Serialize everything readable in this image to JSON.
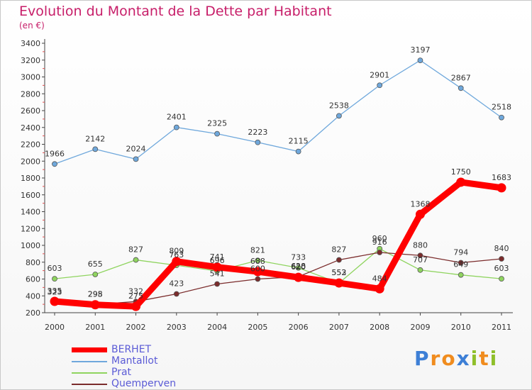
{
  "header": {
    "title": "Evolution du Montant de la Dette par Habitant",
    "subtitle": "(en €)"
  },
  "chart_data": {
    "type": "line",
    "title": "Evolution du Montant de la Dette par Habitant",
    "subtitle": "(en €)",
    "xlabel": "",
    "ylabel": "",
    "categories": [
      "2000",
      "2001",
      "2002",
      "2003",
      "2004",
      "2005",
      "2006",
      "2007",
      "2008",
      "2009",
      "2010",
      "2011"
    ],
    "ylim": [
      200,
      3400
    ],
    "yticks": [
      200,
      400,
      600,
      800,
      1000,
      1200,
      1400,
      1600,
      1800,
      2000,
      2200,
      2400,
      2600,
      2800,
      3000,
      3200,
      3400
    ],
    "grid": false,
    "legend_position": "bottom-left",
    "series": [
      {
        "name": "BERHET",
        "color": "#ff0000",
        "values": [
          335,
          295,
          275,
          809,
          741,
          688,
          620,
          553,
          484,
          1368,
          1750,
          1683
        ]
      },
      {
        "name": "Mantallot",
        "color": "#6fa8dc",
        "values": [
          1966,
          2142,
          2024,
          2401,
          2325,
          2223,
          2115,
          2538,
          2901,
          3197,
          2867,
          2518
        ]
      },
      {
        "name": "Prat",
        "color": "#8fd45f",
        "values": [
          603,
          655,
          827,
          763,
          696,
          821,
          733,
          552,
          960,
          707,
          649,
          603
        ]
      },
      {
        "name": "Quemperven",
        "color": "#7b2c2c",
        "values": [
          323,
          298,
          332,
          423,
          541,
          600,
          628,
          827,
          916,
          880,
          794,
          840
        ]
      }
    ]
  },
  "logo": {
    "letters": [
      "P",
      "r",
      "o",
      "x",
      "i",
      "t",
      "i"
    ],
    "colors": [
      "#3d7fd6",
      "#f08c1e",
      "#f08c1e",
      "#3d7fd6",
      "#8fbf2a",
      "#f08c1e",
      "#8fbf2a"
    ]
  }
}
